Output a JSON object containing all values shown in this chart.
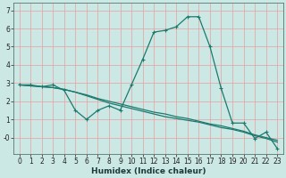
{
  "xlabel": "Humidex (Indice chaleur)",
  "bg_color": "#cce8e4",
  "grid_major_color": "#b0d0cc",
  "grid_minor_color": "#e8a0a0",
  "line_color": "#1a7a6e",
  "x_values": [
    0,
    1,
    2,
    3,
    4,
    5,
    6,
    7,
    8,
    9,
    10,
    11,
    12,
    13,
    14,
    15,
    16,
    17,
    18,
    19,
    20,
    21,
    22,
    23
  ],
  "line1": [
    2.9,
    2.9,
    2.8,
    2.9,
    2.6,
    1.5,
    1.0,
    1.5,
    1.75,
    1.5,
    2.9,
    4.3,
    5.8,
    5.9,
    6.1,
    6.65,
    6.65,
    5.0,
    2.7,
    0.8,
    0.8,
    -0.05,
    0.3,
    -0.6
  ],
  "line2": [
    2.9,
    2.85,
    2.8,
    2.75,
    2.65,
    2.5,
    2.35,
    2.15,
    2.0,
    1.85,
    1.7,
    1.55,
    1.4,
    1.3,
    1.15,
    1.05,
    0.9,
    0.75,
    0.65,
    0.5,
    0.35,
    0.15,
    0.0,
    -0.15
  ],
  "line3": [
    2.9,
    2.85,
    2.8,
    2.75,
    2.65,
    2.5,
    2.3,
    2.1,
    1.9,
    1.75,
    1.6,
    1.45,
    1.3,
    1.15,
    1.05,
    0.95,
    0.85,
    0.7,
    0.55,
    0.45,
    0.3,
    0.1,
    -0.05,
    -0.25
  ],
  "ylim": [
    -0.9,
    7.4
  ],
  "yticks": [
    0,
    1,
    2,
    3,
    4,
    5,
    6,
    7
  ],
  "ytick_labels": [
    "-0",
    "1",
    "2",
    "3",
    "4",
    "5",
    "6",
    "7"
  ],
  "xticks": [
    0,
    1,
    2,
    3,
    4,
    5,
    6,
    7,
    8,
    9,
    10,
    11,
    12,
    13,
    14,
    15,
    16,
    17,
    18,
    19,
    20,
    21,
    22,
    23
  ],
  "xlabel_fontsize": 6.5,
  "tick_fontsize": 5.5
}
